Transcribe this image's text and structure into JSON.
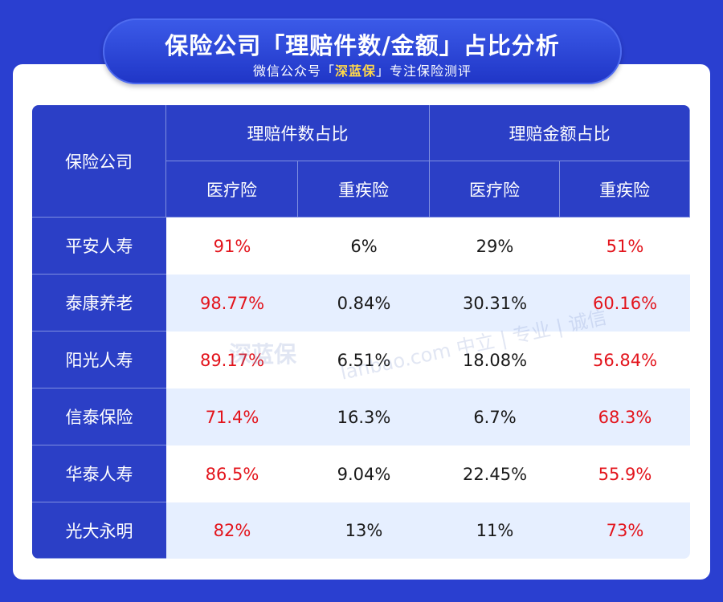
{
  "banner": {
    "title": "保险公司「理赔件数/金额」占比分析",
    "subtitle_pre": "微信公众号「",
    "subtitle_brand": "深蓝保",
    "subtitle_post": "」专注保险测评"
  },
  "table": {
    "company_header": "保险公司",
    "group_headers": [
      "理赔件数占比",
      "理赔金额占比"
    ],
    "sub_headers": [
      "医疗险",
      "重疾险",
      "医疗险",
      "重疾险"
    ],
    "rows": [
      {
        "company": "平安人寿",
        "values": [
          "91%",
          "6%",
          "29%",
          "51%"
        ]
      },
      {
        "company": "泰康养老",
        "values": [
          "98.77%",
          "0.84%",
          "30.31%",
          "60.16%"
        ]
      },
      {
        "company": "阳光人寿",
        "values": [
          "89.17%",
          "6.51%",
          "18.08%",
          "56.84%"
        ]
      },
      {
        "company": "信泰保险",
        "values": [
          "71.4%",
          "16.3%",
          "6.7%",
          "68.3%"
        ]
      },
      {
        "company": "华泰人寿",
        "values": [
          "86.5%",
          "9.04%",
          "22.45%",
          "55.9%"
        ]
      },
      {
        "company": "光大永明",
        "values": [
          "82%",
          "13%",
          "11%",
          "73%"
        ]
      }
    ]
  },
  "watermark": {
    "logo": "深蓝保",
    "text": "lanbao.com 中立 | 专业 | 诚信"
  },
  "colors": {
    "background": "#2a3fd0",
    "header": "#2b3fc6",
    "stripe": "#e6efff",
    "highlight": "#e3141c",
    "brand_accent": "#ffd84a"
  }
}
